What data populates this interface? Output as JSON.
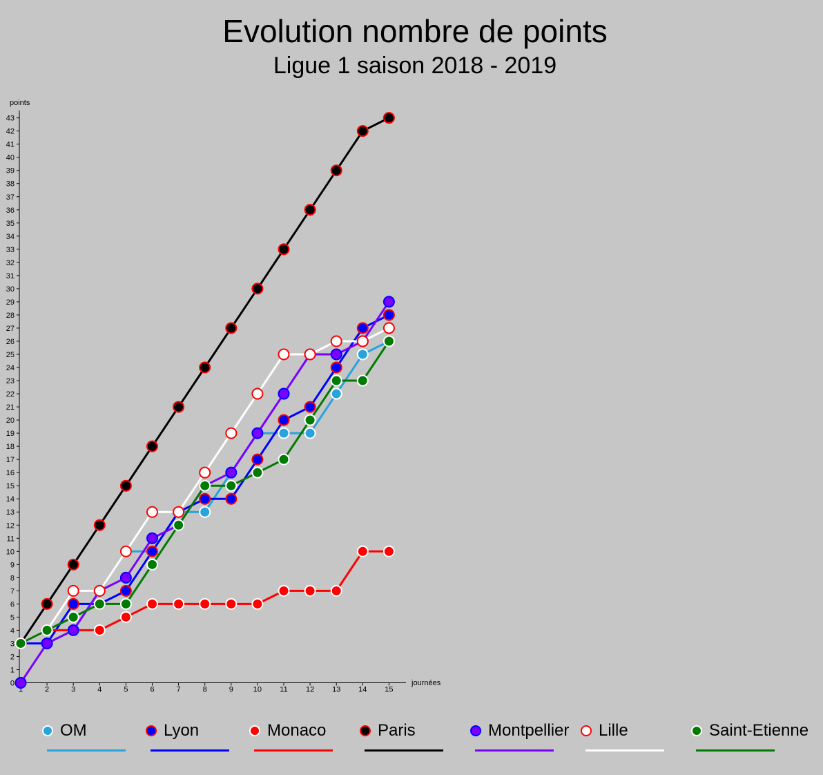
{
  "header": {
    "title": "Evolution nombre de points",
    "subtitle": "Ligue 1 saison 2018 - 2019"
  },
  "chart_data": {
    "type": "line",
    "title": "Evolution nombre de points",
    "subtitle": "Ligue 1 saison 2018 - 2019",
    "xlabel": "journées",
    "ylabel": "points",
    "x": [
      1,
      2,
      3,
      4,
      5,
      6,
      7,
      8,
      9,
      10,
      11,
      12,
      13,
      14,
      15
    ],
    "xlim": [
      1,
      15
    ],
    "ylim": [
      0,
      43
    ],
    "grid": false,
    "legend_position": "bottom",
    "series": [
      {
        "name": "OM",
        "line_color": "#29a3dc",
        "fill_color": "#29a3dc",
        "edge_color": "#ffffff",
        "values": [
          3,
          3,
          4,
          7,
          10,
          10,
          13,
          13,
          16,
          19,
          19,
          19,
          22,
          25,
          26
        ]
      },
      {
        "name": "Lyon",
        "line_color": "#0000ff",
        "fill_color": "#0000ff",
        "edge_color": "#ff0000",
        "values": [
          3,
          3,
          6,
          6,
          7,
          10,
          13,
          14,
          14,
          17,
          20,
          21,
          24,
          27,
          28
        ]
      },
      {
        "name": "Monaco",
        "line_color": "#ff0000",
        "fill_color": "#ff0000",
        "edge_color": "#ffffff",
        "values": [
          3,
          4,
          4,
          4,
          5,
          6,
          6,
          6,
          6,
          6,
          7,
          7,
          7,
          10,
          10
        ]
      },
      {
        "name": "Paris",
        "line_color": "#000000",
        "fill_color": "#000000",
        "edge_color": "#ff0000",
        "values": [
          3,
          6,
          9,
          12,
          15,
          18,
          21,
          24,
          27,
          30,
          33,
          36,
          39,
          42,
          43
        ]
      },
      {
        "name": "Montpellier",
        "line_color": "#7a00ff",
        "fill_color": "#7a00ff",
        "edge_color": "#0000ff",
        "values": [
          0,
          3,
          4,
          7,
          8,
          11,
          12,
          15,
          16,
          19,
          22,
          25,
          25,
          26,
          29
        ]
      },
      {
        "name": "Lille",
        "line_color": "#ffffff",
        "fill_color": "#ffffff",
        "edge_color": "#ff0000",
        "values": [
          3,
          4,
          7,
          7,
          10,
          13,
          13,
          16,
          19,
          22,
          25,
          25,
          26,
          26,
          27
        ]
      },
      {
        "name": "Saint-Etienne",
        "line_color": "#007a00",
        "fill_color": "#007a00",
        "edge_color": "#ffffff",
        "values": [
          3,
          4,
          5,
          6,
          6,
          9,
          12,
          15,
          15,
          16,
          17,
          20,
          23,
          23,
          26
        ]
      }
    ]
  }
}
